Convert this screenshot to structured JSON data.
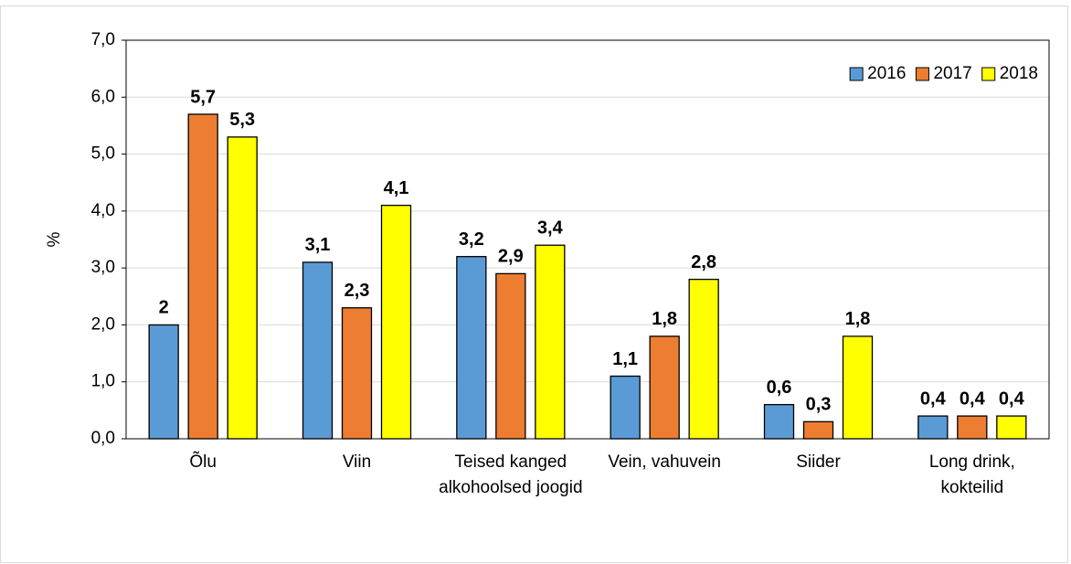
{
  "chart_data": {
    "type": "bar",
    "y_label": "%",
    "categories": [
      "Õlu",
      "Viin",
      "Teised kanged alkohoolsed joogid",
      "Vein, vahuvein",
      "Siider",
      "Long drink, kokteilid"
    ],
    "series": [
      {
        "name": "2016",
        "color": "#5b9bd5",
        "values": [
          2,
          3.1,
          3.2,
          1.1,
          0.6,
          0.4
        ],
        "value_labels": [
          "2",
          "3,1",
          "3,2",
          "1,1",
          "0,6",
          "0,4"
        ]
      },
      {
        "name": "2017",
        "color": "#ed7d31",
        "values": [
          5.7,
          2.3,
          2.9,
          1.8,
          0.3,
          0.4
        ],
        "value_labels": [
          "5,7",
          "2,3",
          "2,9",
          "1,8",
          "0,3",
          "0,4"
        ]
      },
      {
        "name": "2018",
        "color": "#ffff00",
        "values": [
          5.3,
          4.1,
          3.4,
          2.8,
          1.8,
          0.4
        ],
        "value_labels": [
          "5,3",
          "4,1",
          "3,4",
          "2,8",
          "1,8",
          "0,4"
        ]
      }
    ],
    "ylim": [
      0,
      7
    ],
    "yticks": [
      {
        "value": 0,
        "label": "0,0"
      },
      {
        "value": 1,
        "label": "1,0"
      },
      {
        "value": 2,
        "label": "2,0"
      },
      {
        "value": 3,
        "label": "3,0"
      },
      {
        "value": 4,
        "label": "4,0"
      },
      {
        "value": 5,
        "label": "5,0"
      },
      {
        "value": 6,
        "label": "6,0"
      },
      {
        "value": 7,
        "label": "7,0"
      }
    ],
    "grid": true,
    "legend": "top-right"
  }
}
